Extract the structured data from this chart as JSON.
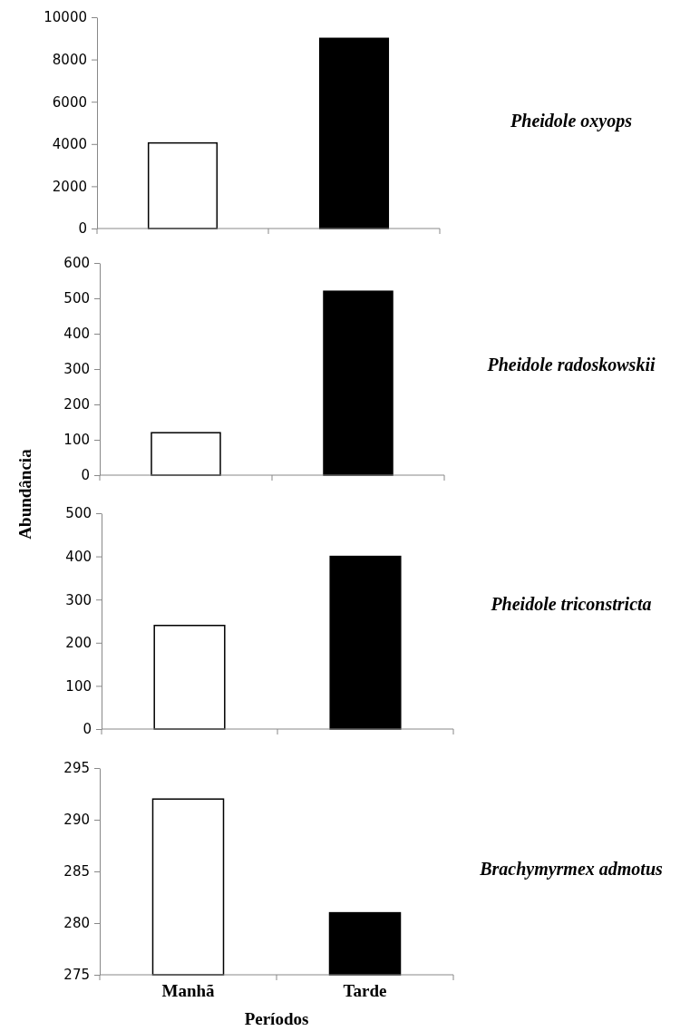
{
  "chart_data": [
    {
      "type": "bar",
      "annotations": [
        "Pheidole oxyops"
      ],
      "categories": [
        null,
        null
      ],
      "values": [
        4050,
        9000
      ],
      "colors": [
        "#ffffff",
        "#000000"
      ],
      "ylim": [
        0,
        10000
      ],
      "yticks": [
        0,
        2000,
        4000,
        6000,
        8000,
        10000
      ],
      "tick_labels": "y"
    },
    {
      "type": "bar",
      "annotations": [
        "Pheidole radoskowskii"
      ],
      "ylabel": "Abundância",
      "categories": [
        null,
        null
      ],
      "values": [
        120,
        520
      ],
      "colors": [
        "#ffffff",
        "#000000"
      ],
      "ylim": [
        0,
        600
      ],
      "yticks": [
        0,
        100,
        200,
        300,
        400,
        500,
        600
      ],
      "tick_labels": "y"
    },
    {
      "type": "bar",
      "annotations": [
        "Pheidole triconstricta"
      ],
      "categories": [
        null,
        null
      ],
      "values": [
        240,
        400
      ],
      "colors": [
        "#ffffff",
        "#000000"
      ],
      "ylim": [
        0,
        500
      ],
      "yticks": [
        0,
        100,
        200,
        300,
        400,
        500
      ],
      "tick_labels": "y"
    },
    {
      "type": "bar",
      "annotations": [
        "Brachymyrmex admotus"
      ],
      "xlabel": "Períodos",
      "categories": [
        "Manhã",
        "Tarde"
      ],
      "values": [
        292,
        281
      ],
      "colors": [
        "#ffffff",
        "#000000"
      ],
      "ylim": [
        275,
        295
      ],
      "yticks": [
        275,
        280,
        285,
        290,
        295
      ]
    }
  ]
}
